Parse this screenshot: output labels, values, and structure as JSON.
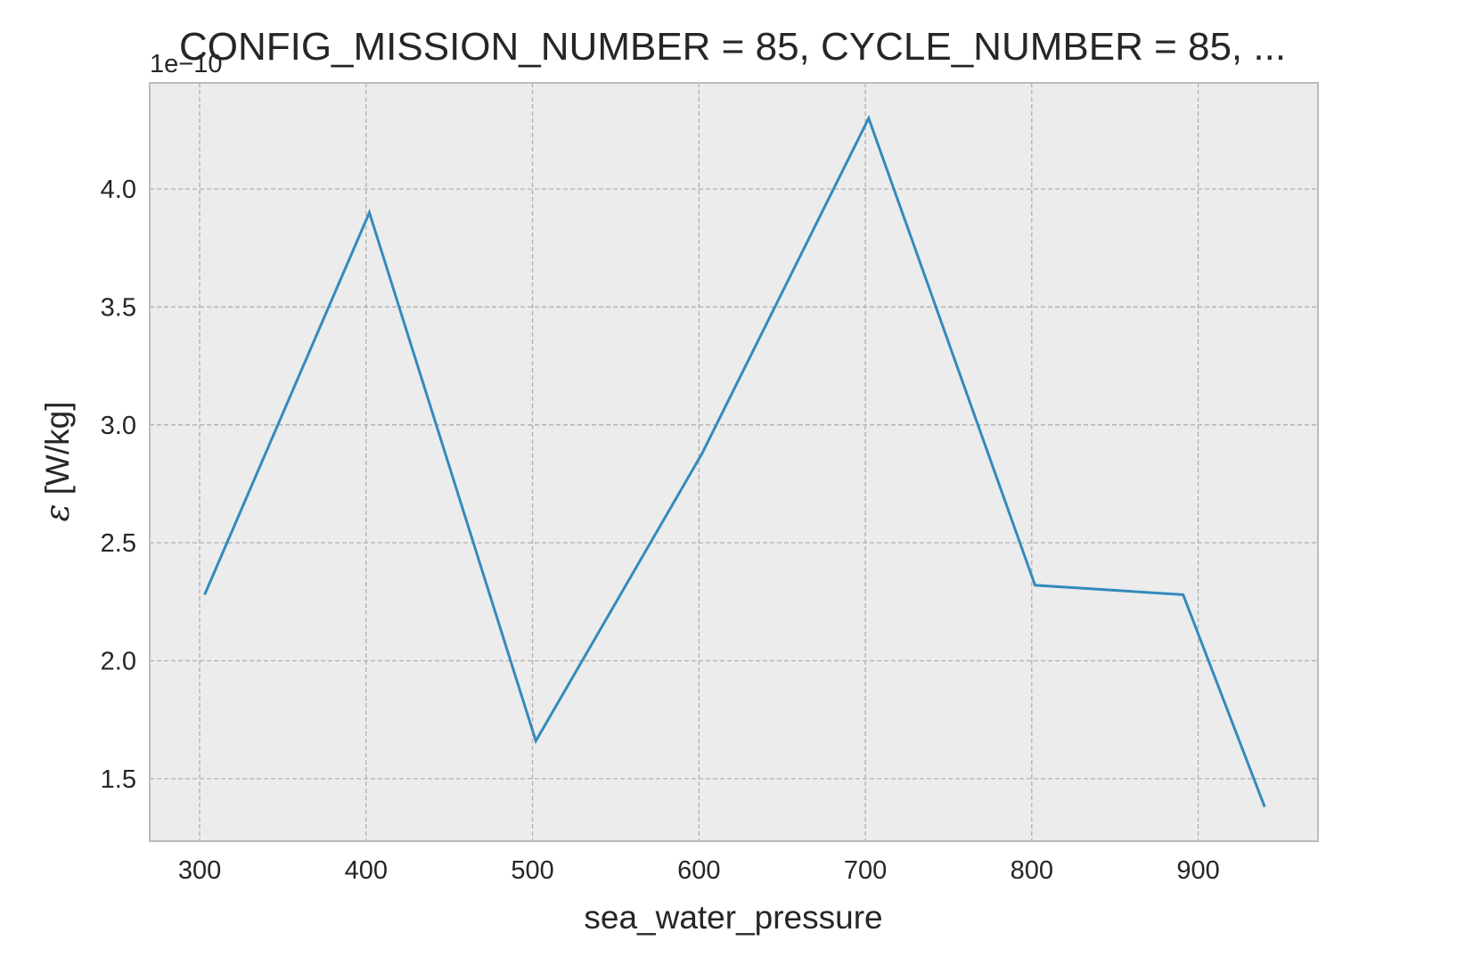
{
  "chart_data": {
    "type": "line",
    "title": "CONFIG_MISSION_NUMBER = 85, CYCLE_NUMBER = 85, ...",
    "xlabel": "sea_water_pressure",
    "ylabel_symbol": "ε",
    "ylabel_unit": "[W/kg]",
    "y_offset_label": "1e−10",
    "xlim": [
      270,
      972
    ],
    "ylim": [
      1.235,
      4.45
    ],
    "x_ticks": [
      300,
      400,
      500,
      600,
      700,
      800,
      900
    ],
    "x_tick_labels": [
      "300",
      "400",
      "500",
      "600",
      "700",
      "800",
      "900"
    ],
    "y_ticks": [
      1.5,
      2.0,
      2.5,
      3.0,
      3.5,
      4.0
    ],
    "y_tick_labels": [
      "1.5",
      "2.0",
      "2.5",
      "3.0",
      "3.5",
      "4.0"
    ],
    "grid": true,
    "colors": {
      "line": "#348abd",
      "background": "#ececec",
      "grid": "#b0b0b0",
      "spine": "#bcbcbc"
    },
    "series": [
      {
        "x": [
          303,
          402,
          502,
          602,
          702,
          802,
          891,
          940
        ],
        "values": [
          2.28,
          3.9,
          1.66,
          2.88,
          4.3,
          2.32,
          2.28,
          1.38
        ]
      }
    ]
  }
}
